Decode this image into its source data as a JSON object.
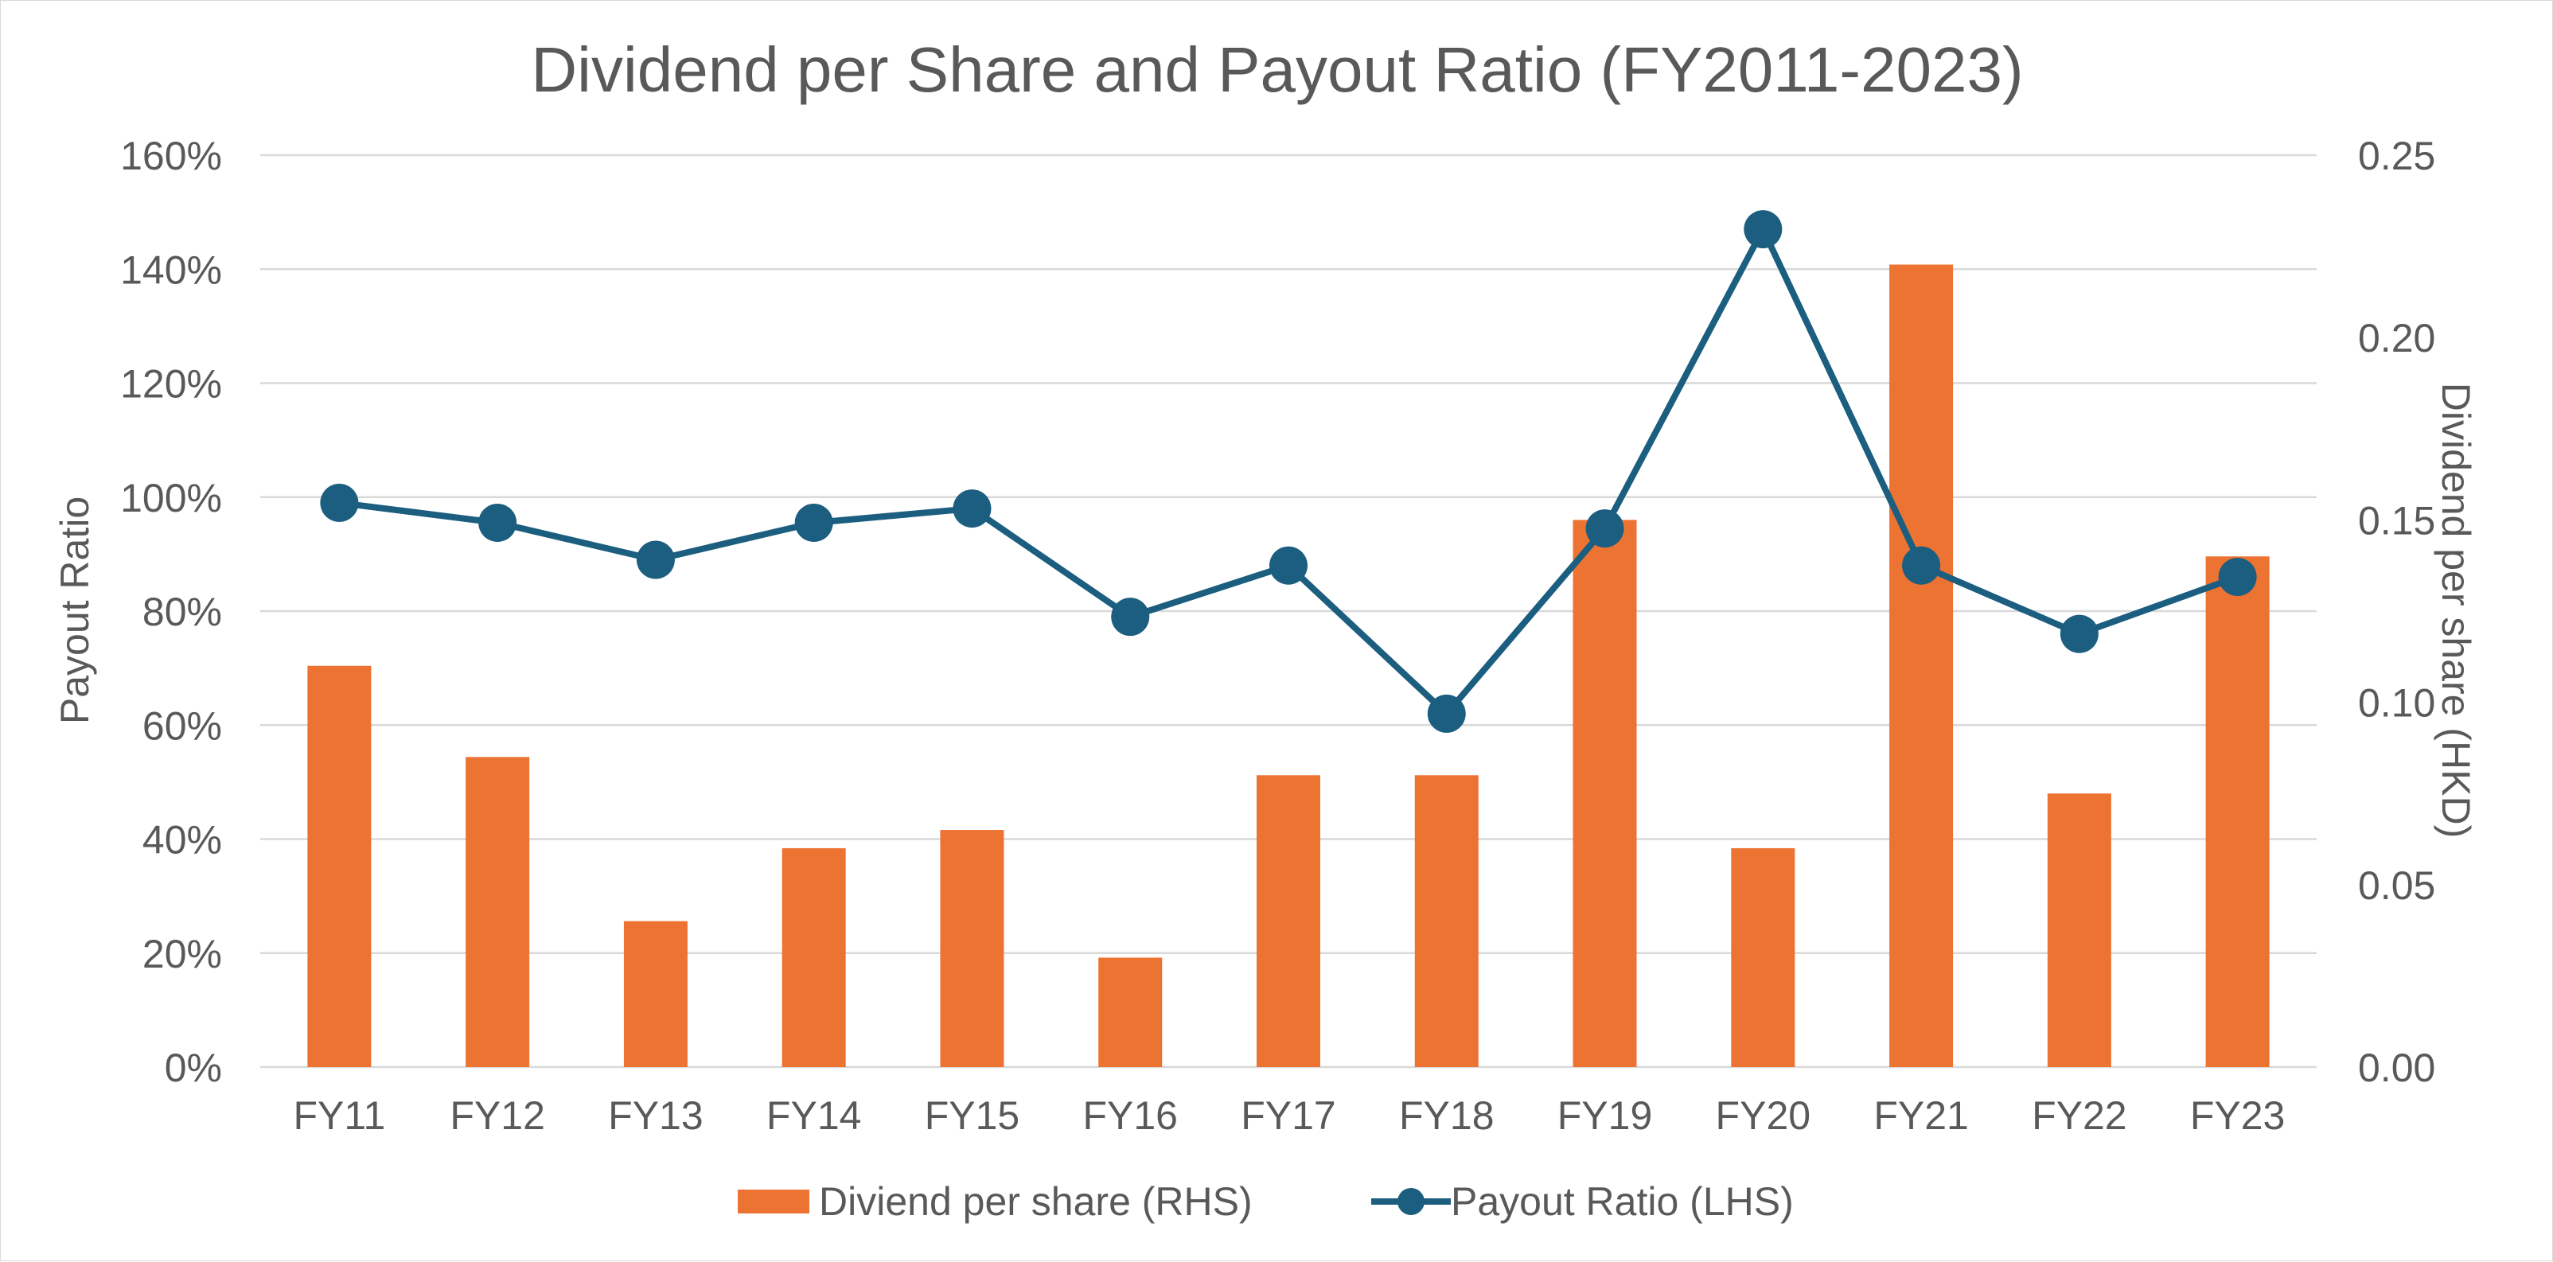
{
  "chart_data": {
    "type": "bar",
    "title": "Dividend per Share and Payout Ratio (FY2011-2023)",
    "categories": [
      "FY11",
      "FY12",
      "FY13",
      "FY14",
      "FY15",
      "FY16",
      "FY17",
      "FY18",
      "FY19",
      "FY20",
      "FY21",
      "FY22",
      "FY23"
    ],
    "series": [
      {
        "name": "Diviend per share (RHS)",
        "type": "bar",
        "axis": "right",
        "color": "#ED7333",
        "values": [
          0.11,
          0.085,
          0.04,
          0.06,
          0.065,
          0.03,
          0.08,
          0.08,
          0.15,
          0.06,
          0.22,
          0.075,
          0.14
        ]
      },
      {
        "name": "Payout Ratio (LHS)",
        "type": "line",
        "axis": "left",
        "color": "#1B5E7F",
        "marker": "circle",
        "values": [
          99,
          95.5,
          89,
          95.5,
          98,
          79,
          88,
          62,
          94.5,
          147,
          88,
          76,
          86
        ]
      }
    ],
    "y_left": {
      "label": "Payout Ratio",
      "ylim": [
        0,
        160
      ],
      "ticks": [
        "0%",
        "20%",
        "40%",
        "60%",
        "80%",
        "100%",
        "120%",
        "140%",
        "160%"
      ]
    },
    "y_right": {
      "label": "Dividend per share (HKD)",
      "ylim": [
        0,
        0.25
      ],
      "ticks": [
        "0.00",
        "0.05",
        "0.10",
        "0.15",
        "0.20",
        "0.25"
      ]
    },
    "grid": true,
    "legend_position": "bottom"
  }
}
